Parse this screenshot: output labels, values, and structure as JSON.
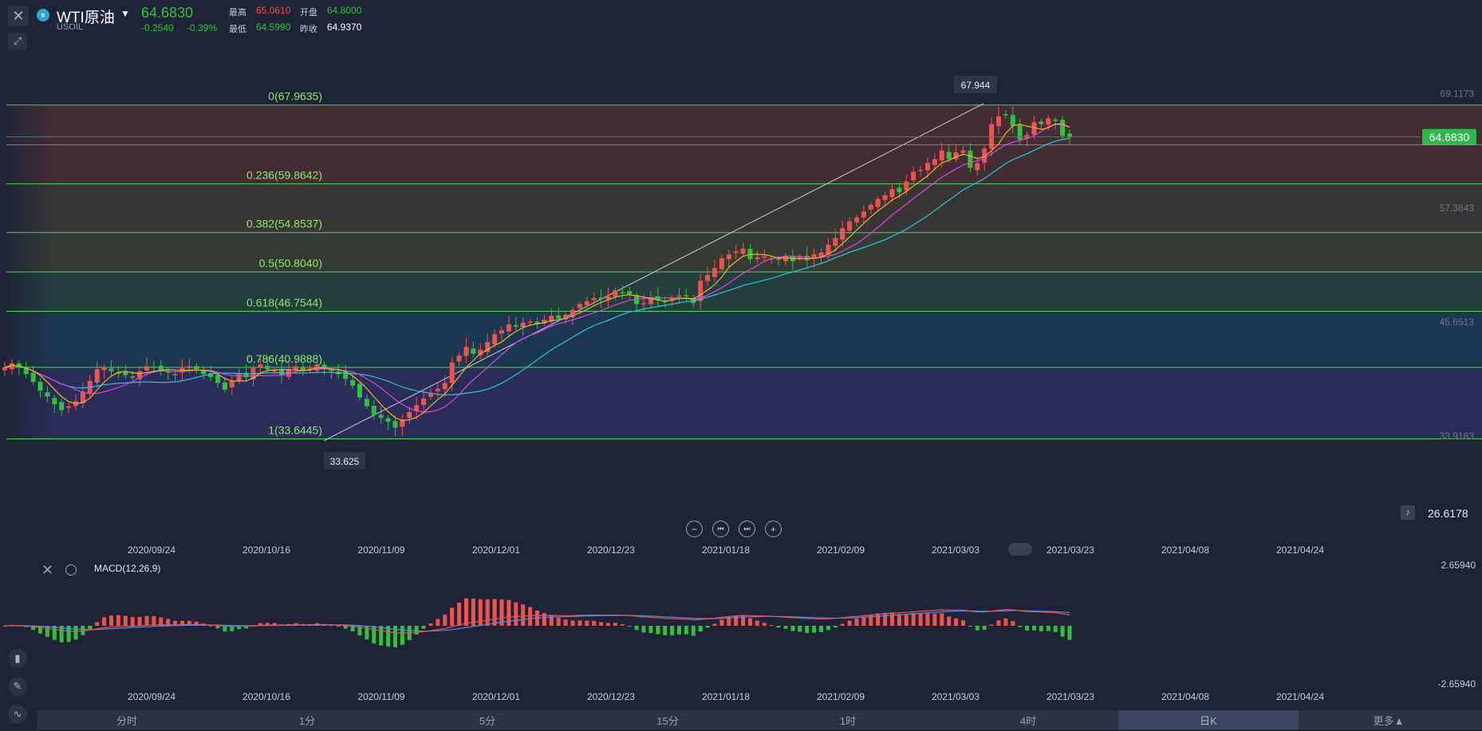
{
  "header": {
    "symbol_name": "WTI原油",
    "symbol_code": "USOIL",
    "symbol_logo": "¤",
    "last_price": "64.6830",
    "change_abs": "-0.2540",
    "change_pct": "-0.39%",
    "stats": {
      "high_label": "最高",
      "high": "65.0610",
      "open_label": "开盘",
      "open": "64.8000",
      "low_label": "最低",
      "low": "64.5990",
      "prev_label": "昨收",
      "prev": "64.9370"
    },
    "icons": {
      "close": "close-icon",
      "pin": "pin-icon",
      "caret": "caret-down-icon"
    }
  },
  "chart_data": {
    "type": "candlestick",
    "symbol": "WTI原油",
    "timeframe": "日K",
    "price_axis_labels": [
      "69.1173",
      "57.3843",
      "45.6513",
      "33.9183"
    ],
    "price_range": [
      32.05,
      70.4
    ],
    "current_price_tag": "64.6830",
    "x_tick_labels": [
      "2020/09/24",
      "2020/10/16",
      "2020/11/09",
      "2020/12/01",
      "2020/12/23",
      "2021/01/18",
      "2021/02/09",
      "2021/03/03",
      "2021/03/23",
      "2021/04/08",
      "2021/04/24"
    ],
    "fibonacci": [
      {
        "label": "0(67.9635)",
        "level": 67.9635
      },
      {
        "label": "0.236(59.8642)",
        "level": 59.8642
      },
      {
        "label": "0.382(54.8537)",
        "level": 54.8537
      },
      {
        "label": "0.5(50.8040)",
        "level": 50.804
      },
      {
        "label": "0.618(46.7544)",
        "level": 46.7544
      },
      {
        "label": "0.786(40.9888)",
        "level": 40.9888
      },
      {
        "label": "1(33.6445)",
        "level": 33.6445
      }
    ],
    "fib_zone_colors": [
      "#4a2f35",
      "#3d3a35",
      "#3a3f34",
      "#26423e",
      "#1f3b56",
      "#2d2f5e"
    ],
    "swing_high_label": "67.944",
    "swing_low_label": "33.625",
    "channel": {
      "start": [
        "2020/11/04",
        33.6
      ],
      "end": [
        "2021/03/08",
        68.0
      ]
    },
    "closes": [
      41.0,
      41.4,
      41.0,
      40.3,
      39.5,
      38.6,
      38.0,
      37.2,
      36.6,
      37.0,
      37.5,
      38.5,
      39.6,
      40.8,
      41.0,
      40.6,
      40.4,
      40.2,
      40.0,
      40.6,
      41.1,
      41.0,
      40.7,
      40.5,
      40.3,
      40.9,
      41.1,
      40.8,
      40.3,
      40.0,
      39.4,
      38.7,
      39.6,
      40.3,
      40.0,
      40.9,
      41.3,
      40.8,
      40.7,
      40.2,
      40.8,
      41.1,
      40.6,
      40.9,
      41.3,
      40.8,
      40.6,
      40.3,
      39.8,
      39.1,
      37.9,
      37.0,
      36.1,
      35.8,
      35.4,
      34.8,
      35.6,
      36.4,
      37.1,
      37.8,
      38.3,
      38.8,
      39.4,
      41.5,
      42.2,
      43.1,
      42.4,
      42.8,
      43.6,
      44.4,
      44.8,
      45.4,
      45.2,
      45.6,
      45.7,
      45.5,
      45.9,
      46.3,
      46.0,
      46.4,
      46.9,
      47.5,
      47.8,
      48.1,
      48.0,
      48.3,
      48.9,
      48.6,
      48.5,
      47.5,
      47.6,
      48.2,
      47.9,
      47.8,
      48.1,
      48.4,
      48.3,
      47.6,
      49.9,
      50.5,
      51.2,
      52.2,
      52.6,
      52.9,
      53.2,
      52.1,
      52.3,
      52.4,
      52.2,
      52.1,
      52.4,
      51.9,
      52.3,
      52.0,
      52.6,
      52.8,
      53.6,
      54.3,
      55.3,
      56.0,
      56.4,
      57.0,
      57.7,
      58.3,
      58.7,
      59.3,
      59.0,
      60.1,
      61.1,
      61.3,
      62.0,
      62.4,
      63.3,
      62.4,
      63.1,
      63.3,
      61.5,
      62.0,
      63.5,
      66.0,
      66.8,
      67.0,
      65.8,
      64.4,
      64.9,
      66.2,
      66.0,
      66.6,
      66.4,
      64.8,
      64.7
    ],
    "ma_fast_color": "#f0b32a",
    "ma_mid_color": "#e040e8",
    "ma_slow_color": "#26c6da",
    "up_color": "#ef5350",
    "down_color": "#31c13c"
  },
  "controls": {
    "zoom_out": "−",
    "prev": "⏮",
    "next": "⏭",
    "zoom_in": "+"
  },
  "alert": {
    "icon": "bell-icon",
    "value": "26.6178"
  },
  "macd": {
    "label": "MACD(12,26,9)",
    "axis_top": "2.65940",
    "axis_bottom": "-2.65940",
    "dif_color": "#ef5350",
    "dea_color": "#4a8ff0"
  },
  "toolbar": {
    "candles": "candles-icon",
    "draw": "pencil-icon",
    "indicator": "indicator-icon"
  },
  "tabs": [
    {
      "label": "分时",
      "active": false
    },
    {
      "label": "1分",
      "active": false
    },
    {
      "label": "5分",
      "active": false
    },
    {
      "label": "15分",
      "active": false
    },
    {
      "label": "1时",
      "active": false
    },
    {
      "label": "4时",
      "active": false
    },
    {
      "label": "日K",
      "active": true
    },
    {
      "label": "更多▲",
      "active": false
    }
  ]
}
